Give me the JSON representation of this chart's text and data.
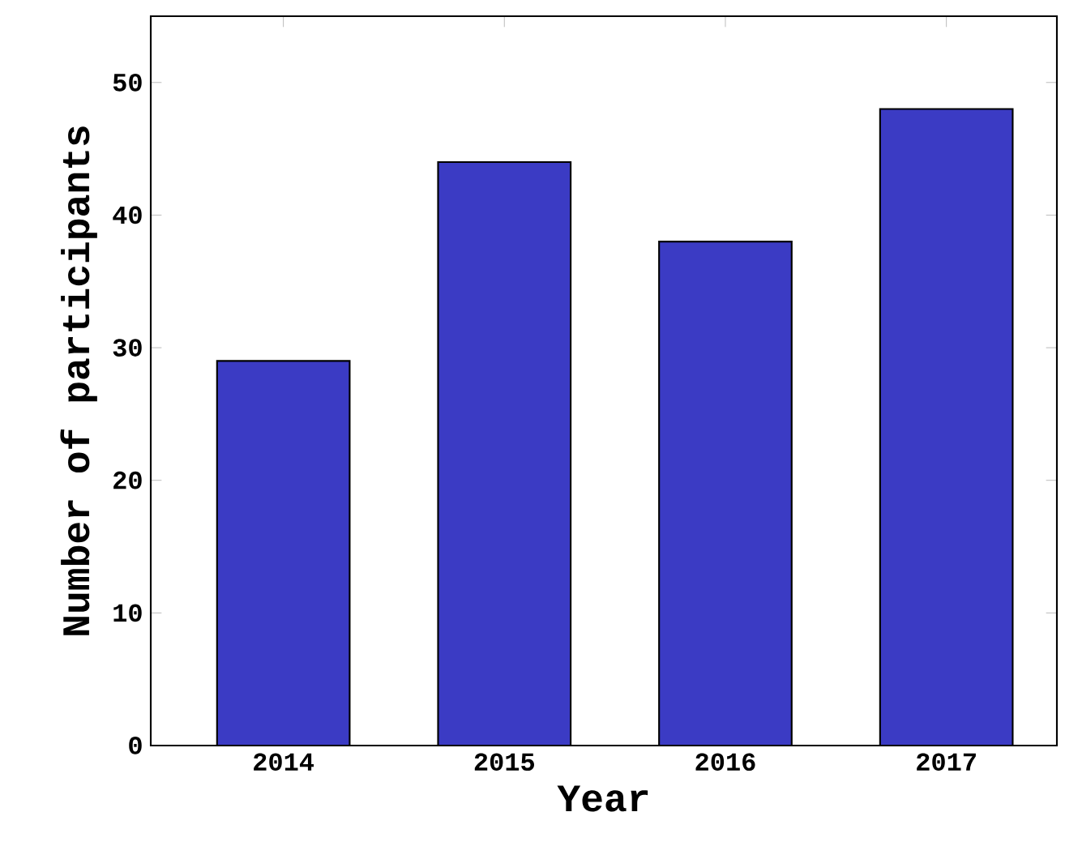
{
  "chart_data": {
    "type": "bar",
    "xlabel": "Year",
    "ylabel": "Number of participants",
    "categories": [
      "2014",
      "2015",
      "2016",
      "2017"
    ],
    "values": [
      29,
      44,
      38,
      48
    ],
    "color": "#3b3bc4",
    "ylim": [
      0,
      55
    ],
    "yticks": [
      0,
      10,
      20,
      30,
      40,
      50
    ]
  }
}
